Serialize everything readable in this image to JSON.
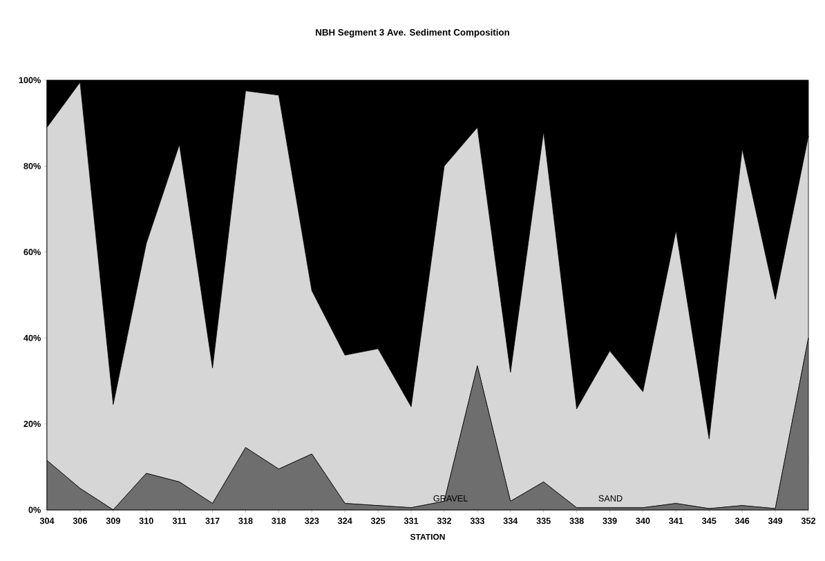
{
  "chart_data": {
    "type": "area",
    "stacked": true,
    "title": "NBH Segment 3 Ave. Sediment Composition",
    "xlabel": "STATION",
    "categories": [
      "304",
      "306",
      "309",
      "310",
      "311",
      "317",
      "318",
      "318",
      "323",
      "324",
      "325",
      "331",
      "332",
      "333",
      "334",
      "335",
      "338",
      "339",
      "340",
      "341",
      "345",
      "346",
      "349",
      "352"
    ],
    "series": [
      {
        "color": "#6e6e6e",
        "values": [
          11.5,
          5,
          0,
          8.5,
          6.5,
          1.5,
          14.5,
          9.5,
          13,
          1.5,
          1,
          0.5,
          2,
          33.5,
          2,
          6.5,
          0.5,
          0.5,
          0.5,
          1.5,
          0.3,
          1,
          0.3,
          40
        ]
      },
      {
        "color": "#d6d6d6",
        "values": [
          77.5,
          94.5,
          24.5,
          53.5,
          78.5,
          31.5,
          83,
          87,
          38,
          34.5,
          36.5,
          23.5,
          78,
          55.5,
          30,
          81.5,
          23,
          36.5,
          27,
          63.5,
          16.2,
          83,
          48.7,
          47
        ]
      },
      {
        "color": "#000000",
        "values": [
          11,
          0.5,
          75.5,
          38,
          15,
          67,
          2.5,
          3.5,
          49,
          64,
          62.5,
          76,
          20,
          11,
          68,
          12,
          76.5,
          63,
          72.5,
          35,
          83.5,
          16,
          51,
          13
        ]
      }
    ],
    "ylim": [
      0,
      100
    ],
    "yticks": [
      {
        "value": 0,
        "label": "0%"
      },
      {
        "value": 20,
        "label": "20%"
      },
      {
        "value": 40,
        "label": "40%"
      },
      {
        "value": 60,
        "label": "60%"
      },
      {
        "value": 80,
        "label": "80%"
      },
      {
        "value": 100,
        "label": "100%"
      }
    ],
    "annotations": [
      "GRAVEL",
      "SAND"
    ]
  }
}
